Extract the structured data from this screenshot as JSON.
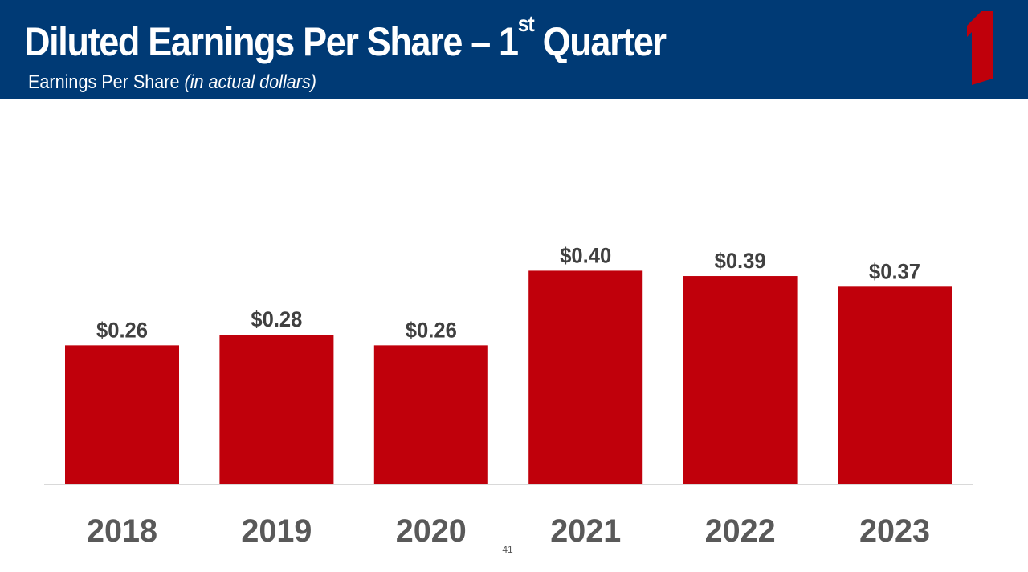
{
  "header": {
    "title_main": "Diluted Earnings Per Share – 1",
    "title_sup": "st",
    "title_end": " Quarter",
    "subtitle_main": "Earnings Per Share ",
    "subtitle_italic": "(in actual dollars)"
  },
  "logo": {
    "icon": "numeral-one-logo",
    "color": "#c0000b"
  },
  "page_number": "41",
  "colors": {
    "header": "#003a75",
    "bar": "#c0000b",
    "value_label": "#404040",
    "axis_label": "#595959",
    "baseline": "#d9d9d9"
  },
  "chart_data": {
    "type": "bar",
    "categories": [
      "2018",
      "2019",
      "2020",
      "2021",
      "2022",
      "2023"
    ],
    "values": [
      0.26,
      0.28,
      0.26,
      0.4,
      0.39,
      0.37
    ],
    "value_labels": [
      "$0.26",
      "$0.28",
      "$0.26",
      "$0.40",
      "$0.39",
      "$0.37"
    ],
    "title": "Diluted Earnings Per Share – 1st Quarter",
    "subtitle": "Earnings Per Share (in actual dollars)",
    "ylim": [
      0,
      0.4
    ],
    "grid": false,
    "legend": "none"
  }
}
